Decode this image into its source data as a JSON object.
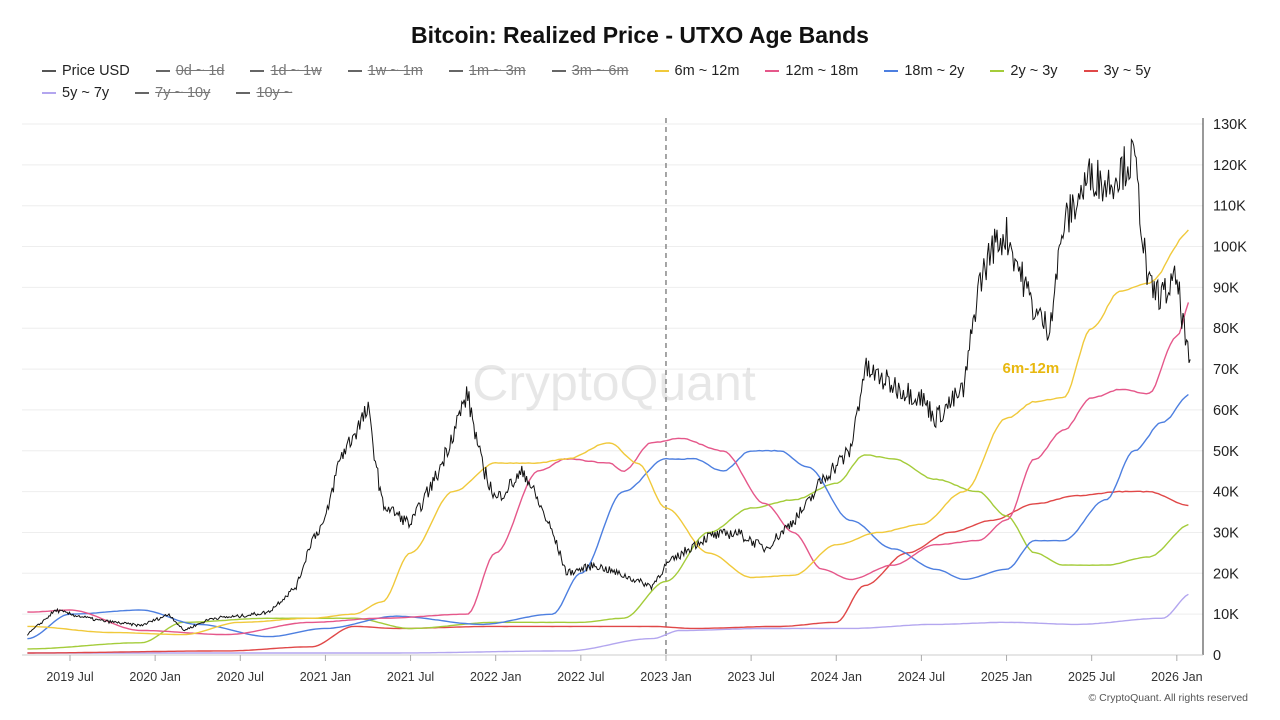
{
  "chart_data": {
    "type": "line",
    "title": "Bitcoin: Realized Price - UTXO Age Bands",
    "ylim": [
      0,
      130000
    ],
    "yticks": [
      "0",
      "10K",
      "20K",
      "30K",
      "40K",
      "50K",
      "60K",
      "70K",
      "80K",
      "90K",
      "100K",
      "110K",
      "120K",
      "130K"
    ],
    "xticks": [
      "2019 Jul",
      "2020 Jan",
      "2020 Jul",
      "2021 Jan",
      "2021 Jul",
      "2022 Jan",
      "2022 Jul",
      "2023 Jan",
      "2023 Jul",
      "2024 Jan",
      "2024 Jul",
      "2025 Jan",
      "2025 Jul",
      "2026 Jan"
    ],
    "grid": true,
    "legend_position": "top",
    "marker_line_date": "2023-01",
    "annotation": {
      "text": "6m-12m",
      "date": "2025-01",
      "value": 70000,
      "color": "#e8b80f"
    },
    "watermark": "CryptoQuant",
    "legend": [
      {
        "name": "Price USD",
        "color": "#555555",
        "visible": true
      },
      {
        "name": "0d ~ 1d",
        "color": "#555555",
        "visible": false
      },
      {
        "name": "1d ~ 1w",
        "color": "#555555",
        "visible": false
      },
      {
        "name": "1w ~ 1m",
        "color": "#555555",
        "visible": false
      },
      {
        "name": "1m ~ 3m",
        "color": "#555555",
        "visible": false
      },
      {
        "name": "3m ~ 6m",
        "color": "#555555",
        "visible": false
      },
      {
        "name": "6m ~ 12m",
        "color": "#f0c93b",
        "visible": true
      },
      {
        "name": "12m ~ 18m",
        "color": "#e5578a",
        "visible": true
      },
      {
        "name": "18m ~ 2y",
        "color": "#4d7fe0",
        "visible": true
      },
      {
        "name": "2y ~ 3y",
        "color": "#a4cc3a",
        "visible": true
      },
      {
        "name": "3y ~ 5y",
        "color": "#e04848",
        "visible": true
      },
      {
        "name": "5y ~ 7y",
        "color": "#b3a6ef",
        "visible": true
      },
      {
        "name": "7y ~ 10y",
        "color": "#555555",
        "visible": false
      },
      {
        "name": "10y ~",
        "color": "#555555",
        "visible": false
      }
    ],
    "series": [
      {
        "name": "5y ~ 7y",
        "color": "#b3a6ef",
        "points": [
          [
            "2019-04",
            500
          ],
          [
            "2021-06",
            500
          ],
          [
            "2022-06",
            1000
          ],
          [
            "2022-12",
            4000
          ],
          [
            "2023-02",
            6000
          ],
          [
            "2023-08",
            6500
          ],
          [
            "2024-02",
            6500
          ],
          [
            "2024-08",
            7500
          ],
          [
            "2025-01",
            8000
          ],
          [
            "2025-06",
            7500
          ],
          [
            "2025-12",
            9000
          ],
          [
            "2026-02",
            15000
          ]
        ]
      },
      {
        "name": "3y ~ 5y",
        "color": "#e04848",
        "points": [
          [
            "2019-04",
            500
          ],
          [
            "2020-06",
            1000
          ],
          [
            "2020-12",
            2000
          ],
          [
            "2021-03",
            7000
          ],
          [
            "2021-06",
            6500
          ],
          [
            "2022-01",
            7000
          ],
          [
            "2022-06",
            7000
          ],
          [
            "2022-12",
            7000
          ],
          [
            "2023-03",
            6500
          ],
          [
            "2023-09",
            7000
          ],
          [
            "2024-01",
            8000
          ],
          [
            "2024-03",
            17000
          ],
          [
            "2024-06",
            25000
          ],
          [
            "2024-09",
            30000
          ],
          [
            "2024-12",
            33000
          ],
          [
            "2025-03",
            37000
          ],
          [
            "2025-06",
            39000
          ],
          [
            "2025-09",
            40000
          ],
          [
            "2025-11",
            40000
          ],
          [
            "2026-02",
            36500
          ]
        ]
      },
      {
        "name": "2y ~ 3y",
        "color": "#a4cc3a",
        "points": [
          [
            "2019-04",
            1500
          ],
          [
            "2019-12",
            3000
          ],
          [
            "2020-03",
            8000
          ],
          [
            "2020-09",
            9000
          ],
          [
            "2021-03",
            9000
          ],
          [
            "2021-07",
            6500
          ],
          [
            "2022-01",
            8000
          ],
          [
            "2022-07",
            8000
          ],
          [
            "2022-10",
            9000
          ],
          [
            "2023-01",
            18000
          ],
          [
            "2023-04",
            30000
          ],
          [
            "2023-07",
            36000
          ],
          [
            "2023-10",
            38000
          ],
          [
            "2024-01",
            42000
          ],
          [
            "2024-03",
            49000
          ],
          [
            "2024-05",
            48000
          ],
          [
            "2024-08",
            43000
          ],
          [
            "2024-11",
            40000
          ],
          [
            "2025-01",
            34000
          ],
          [
            "2025-03",
            25000
          ],
          [
            "2025-05",
            22000
          ],
          [
            "2025-08",
            22000
          ],
          [
            "2025-11",
            24000
          ],
          [
            "2026-02",
            32000
          ]
        ]
      },
      {
        "name": "18m ~ 2y",
        "color": "#4d7fe0",
        "points": [
          [
            "2019-04",
            4000
          ],
          [
            "2019-07",
            10000
          ],
          [
            "2019-12",
            11000
          ],
          [
            "2020-04",
            7500
          ],
          [
            "2020-09",
            4500
          ],
          [
            "2021-01",
            6500
          ],
          [
            "2021-06",
            9500
          ],
          [
            "2021-12",
            7500
          ],
          [
            "2022-05",
            10000
          ],
          [
            "2022-07",
            20000
          ],
          [
            "2022-10",
            40000
          ],
          [
            "2023-01",
            48000
          ],
          [
            "2023-03",
            48000
          ],
          [
            "2023-05",
            45000
          ],
          [
            "2023-07",
            50000
          ],
          [
            "2023-09",
            50000
          ],
          [
            "2023-11",
            46000
          ],
          [
            "2024-02",
            33000
          ],
          [
            "2024-05",
            26000
          ],
          [
            "2024-08",
            21000
          ],
          [
            "2024-10",
            18500
          ],
          [
            "2025-01",
            21000
          ],
          [
            "2025-03",
            28000
          ],
          [
            "2025-05",
            28000
          ],
          [
            "2025-08",
            38000
          ],
          [
            "2025-10",
            50000
          ],
          [
            "2025-12",
            57000
          ],
          [
            "2026-02",
            64000
          ]
        ]
      },
      {
        "name": "12m ~ 18m",
        "color": "#e5578a",
        "points": [
          [
            "2019-04",
            10500
          ],
          [
            "2019-07",
            11000
          ],
          [
            "2019-12",
            6000
          ],
          [
            "2020-06",
            5000
          ],
          [
            "2020-12",
            8000
          ],
          [
            "2021-05",
            9000
          ],
          [
            "2021-11",
            10000
          ],
          [
            "2022-01",
            25000
          ],
          [
            "2022-04",
            45000
          ],
          [
            "2022-06",
            48000
          ],
          [
            "2022-09",
            47000
          ],
          [
            "2022-10",
            45000
          ],
          [
            "2022-12",
            52000
          ],
          [
            "2023-02",
            53000
          ],
          [
            "2023-05",
            50000
          ],
          [
            "2023-08",
            37000
          ],
          [
            "2023-10",
            30000
          ],
          [
            "2023-12",
            21000
          ],
          [
            "2024-02",
            18500
          ],
          [
            "2024-05",
            22000
          ],
          [
            "2024-08",
            27000
          ],
          [
            "2024-11",
            28000
          ],
          [
            "2025-01",
            33000
          ],
          [
            "2025-03",
            48000
          ],
          [
            "2025-05",
            55000
          ],
          [
            "2025-07",
            63000
          ],
          [
            "2025-09",
            65000
          ],
          [
            "2025-11",
            64000
          ],
          [
            "2026-01",
            78000
          ],
          [
            "2026-02",
            87000
          ]
        ]
      },
      {
        "name": "6m ~ 12m",
        "color": "#f0c93b",
        "points": [
          [
            "2019-04",
            7000
          ],
          [
            "2019-10",
            5500
          ],
          [
            "2020-03",
            5000
          ],
          [
            "2020-07",
            8000
          ],
          [
            "2020-12",
            9000
          ],
          [
            "2021-03",
            10000
          ],
          [
            "2021-05",
            13000
          ],
          [
            "2021-07",
            25000
          ],
          [
            "2021-10",
            40000
          ],
          [
            "2022-01",
            47000
          ],
          [
            "2022-04",
            47000
          ],
          [
            "2022-06",
            48000
          ],
          [
            "2022-09",
            52000
          ],
          [
            "2022-11",
            47000
          ],
          [
            "2023-01",
            36000
          ],
          [
            "2023-04",
            25000
          ],
          [
            "2023-07",
            19000
          ],
          [
            "2023-10",
            19500
          ],
          [
            "2024-01",
            27000
          ],
          [
            "2024-04",
            30000
          ],
          [
            "2024-07",
            32000
          ],
          [
            "2024-10",
            40000
          ],
          [
            "2025-01",
            58000
          ],
          [
            "2025-03",
            62000
          ],
          [
            "2025-05",
            63000
          ],
          [
            "2025-07",
            80000
          ],
          [
            "2025-09",
            89000
          ],
          [
            "2025-11",
            91000
          ],
          [
            "2026-02",
            104000
          ]
        ]
      },
      {
        "name": "Price USD",
        "color": "#111111",
        "points": [
          [
            "2019-04",
            5000
          ],
          [
            "2019-06",
            11000
          ],
          [
            "2019-07",
            10000
          ],
          [
            "2019-09",
            8500
          ],
          [
            "2019-12",
            7200
          ],
          [
            "2020-02",
            10000
          ],
          [
            "2020-03",
            6000
          ],
          [
            "2020-05",
            9000
          ],
          [
            "2020-07",
            9500
          ],
          [
            "2020-09",
            10500
          ],
          [
            "2020-11",
            17000
          ],
          [
            "2020-12",
            28000
          ],
          [
            "2021-01",
            33000
          ],
          [
            "2021-02",
            48000
          ],
          [
            "2021-04",
            60000
          ],
          [
            "2021-05",
            37000
          ],
          [
            "2021-07",
            32000
          ],
          [
            "2021-09",
            45000
          ],
          [
            "2021-11",
            64000
          ],
          [
            "2021-12",
            47000
          ],
          [
            "2022-01",
            38000
          ],
          [
            "2022-03",
            45000
          ],
          [
            "2022-05",
            30000
          ],
          [
            "2022-06",
            20000
          ],
          [
            "2022-08",
            22000
          ],
          [
            "2022-10",
            19500
          ],
          [
            "2022-12",
            16800
          ],
          [
            "2023-01",
            22000
          ],
          [
            "2023-03",
            27000
          ],
          [
            "2023-04",
            29000
          ],
          [
            "2023-06",
            30000
          ],
          [
            "2023-08",
            26000
          ],
          [
            "2023-10",
            33000
          ],
          [
            "2023-11",
            37000
          ],
          [
            "2023-12",
            43000
          ],
          [
            "2024-02",
            50000
          ],
          [
            "2024-03",
            70000
          ],
          [
            "2024-05",
            66000
          ],
          [
            "2024-07",
            63000
          ],
          [
            "2024-08",
            58000
          ],
          [
            "2024-10",
            65000
          ],
          [
            "2024-11",
            90000
          ],
          [
            "2024-12",
            100000
          ],
          [
            "2025-01",
            103000
          ],
          [
            "2025-03",
            84000
          ],
          [
            "2025-04",
            80000
          ],
          [
            "2025-05",
            105000
          ],
          [
            "2025-07",
            118000
          ],
          [
            "2025-08",
            115000
          ],
          [
            "2025-10",
            122000
          ],
          [
            "2025-11",
            90000
          ],
          [
            "2025-12",
            88000
          ],
          [
            "2026-01",
            92000
          ],
          [
            "2026-02",
            68000
          ]
        ]
      }
    ]
  },
  "footer": "© CryptoQuant. All rights reserved"
}
